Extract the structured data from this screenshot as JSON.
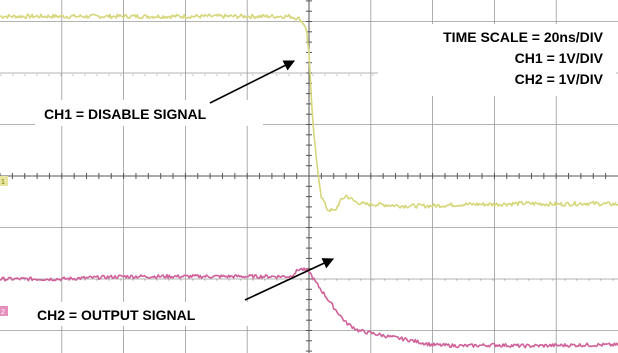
{
  "chart_data": {
    "type": "line",
    "title": "",
    "xlabel": "",
    "ylabel": "",
    "grid": true,
    "divisions": {
      "x": 10,
      "y": 8
    },
    "time_per_div_ns": 20,
    "volts_per_div": {
      "CH1": 1,
      "CH2": 1
    },
    "xlim": [
      0,
      10
    ],
    "ylim": [
      0,
      8
    ],
    "series": [
      {
        "name": "CH1",
        "color": "#d6d67a",
        "x": [
          0,
          1,
          2,
          3,
          4,
          4.7,
          4.85,
          4.95,
          5.0,
          5.05,
          5.12,
          5.2,
          5.3,
          5.42,
          5.5,
          5.6,
          5.75,
          5.9,
          6.1,
          6.5,
          7,
          7.5,
          8,
          8.5,
          9,
          9.5,
          10
        ],
        "y": [
          7.1,
          7.1,
          7.1,
          7.1,
          7.1,
          7.1,
          7.05,
          6.9,
          6.4,
          5.2,
          4.3,
          3.6,
          3.35,
          3.32,
          3.5,
          3.62,
          3.5,
          3.45,
          3.45,
          3.42,
          3.42,
          3.45,
          3.45,
          3.47,
          3.45,
          3.47,
          3.45
        ],
        "noise": 0.04
      },
      {
        "name": "CH2",
        "color": "#d0609a",
        "x": [
          0,
          1,
          2,
          3,
          4,
          4.7,
          4.85,
          5.0,
          5.1,
          5.25,
          5.4,
          5.6,
          5.8,
          6.0,
          6.3,
          6.6,
          7.0,
          7.5,
          8,
          8.5,
          9,
          9.5,
          10
        ],
        "y": [
          2.0,
          2.0,
          2.05,
          2.05,
          2.05,
          2.05,
          2.2,
          2.15,
          1.95,
          1.7,
          1.45,
          1.15,
          1.0,
          0.95,
          0.88,
          0.82,
          0.72,
          0.7,
          0.72,
          0.7,
          0.71,
          0.72,
          0.72
        ],
        "noise": 0.035
      }
    ]
  },
  "annotations": {
    "time_scale": "TIME SCALE = 20ns/DIV",
    "ch1_scale": "CH1 = 1V/DIV",
    "ch2_scale": "CH2 = 1V/DIV",
    "ch1_label": "CH1 = DISABLE SIGNAL",
    "ch2_label": "CH2 = OUTPUT SIGNAL"
  },
  "markers": {
    "ch1_level": "1",
    "ch2_level": "2"
  }
}
